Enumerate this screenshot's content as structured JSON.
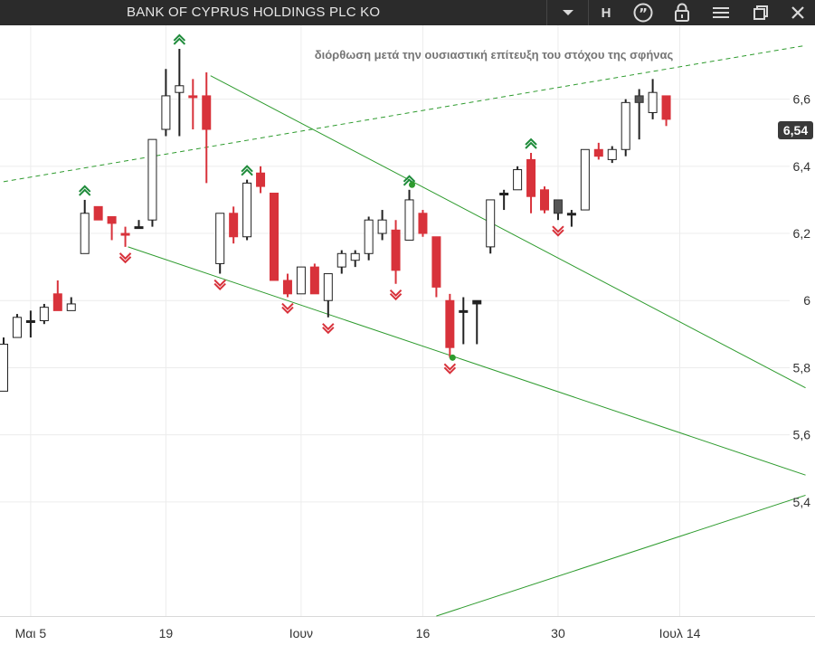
{
  "window": {
    "title": "BANK OF CYPRUS HOLDINGS PLC KO",
    "h_label": "H"
  },
  "icons": [
    "chevron-down-icon",
    "quote-icon",
    "lock-icon",
    "menu-icon",
    "restore-icon",
    "close-icon"
  ],
  "colors": {
    "bull": "#ffffff",
    "bear": "#d8323b",
    "neutral": "#222222",
    "trendline": "#2e9b2e",
    "buy_signal": "#1e8b3a",
    "sell_signal": "#d8323b",
    "titlebar": "#2b2b2b"
  },
  "chart_data": {
    "type": "candlestick",
    "title": "BANK OF CYPRUS HOLDINGS PLC KO",
    "annotation": "διόρθωση μετά την ουσιαστική επίτευξη του στόχου της σφήνας",
    "last_price_label": "6,54",
    "last_price": 6.54,
    "ylim": [
      5.06,
      6.82
    ],
    "yticks": [
      {
        "value": 6.6,
        "label": "6,6"
      },
      {
        "value": 6.4,
        "label": "6,4"
      },
      {
        "value": 6.2,
        "label": "6,2"
      },
      {
        "value": 6.0,
        "label": "6"
      },
      {
        "value": 5.8,
        "label": "5,8"
      },
      {
        "value": 5.6,
        "label": "5,6"
      },
      {
        "value": 5.4,
        "label": "5,4"
      }
    ],
    "xticks": [
      {
        "index": 2,
        "label": "Μαι 5"
      },
      {
        "index": 12,
        "label": "19"
      },
      {
        "index": 22,
        "label": "Ιουν"
      },
      {
        "index": 31,
        "label": "16"
      },
      {
        "index": 41,
        "label": "30"
      },
      {
        "index": 50,
        "label": "Ιουλ 14"
      }
    ],
    "candles": [
      {
        "o": 5.73,
        "h": 5.89,
        "l": 5.73,
        "c": 5.87,
        "dir": "up"
      },
      {
        "o": 5.89,
        "h": 5.96,
        "l": 5.89,
        "c": 5.95,
        "dir": "up"
      },
      {
        "o": 5.94,
        "h": 5.97,
        "l": 5.89,
        "c": 5.94,
        "dir": "neutral"
      },
      {
        "o": 5.94,
        "h": 5.99,
        "l": 5.93,
        "c": 5.98,
        "dir": "up"
      },
      {
        "o": 6.02,
        "h": 6.06,
        "l": 5.97,
        "c": 5.97,
        "dir": "down"
      },
      {
        "o": 5.97,
        "h": 6.01,
        "l": 5.97,
        "c": 5.99,
        "dir": "up"
      },
      {
        "o": 6.14,
        "h": 6.3,
        "l": 6.14,
        "c": 6.26,
        "dir": "up"
      },
      {
        "o": 6.28,
        "h": 6.28,
        "l": 6.24,
        "c": 6.24,
        "dir": "down"
      },
      {
        "o": 6.25,
        "h": 6.25,
        "l": 6.18,
        "c": 6.23,
        "dir": "down"
      },
      {
        "o": 6.2,
        "h": 6.22,
        "l": 6.16,
        "c": 6.2,
        "dir": "down"
      },
      {
        "o": 6.22,
        "h": 6.24,
        "l": 6.22,
        "c": 6.22,
        "dir": "neutral"
      },
      {
        "o": 6.24,
        "h": 6.48,
        "l": 6.22,
        "c": 6.48,
        "dir": "up"
      },
      {
        "o": 6.51,
        "h": 6.69,
        "l": 6.49,
        "c": 6.61,
        "dir": "up"
      },
      {
        "o": 6.62,
        "h": 6.75,
        "l": 6.49,
        "c": 6.64,
        "dir": "up"
      },
      {
        "o": 6.61,
        "h": 6.66,
        "l": 6.51,
        "c": 6.61,
        "dir": "down"
      },
      {
        "o": 6.61,
        "h": 6.68,
        "l": 6.35,
        "c": 6.51,
        "dir": "down"
      },
      {
        "o": 6.11,
        "h": 6.26,
        "l": 6.08,
        "c": 6.26,
        "dir": "up"
      },
      {
        "o": 6.26,
        "h": 6.28,
        "l": 6.17,
        "c": 6.19,
        "dir": "down"
      },
      {
        "o": 6.19,
        "h": 6.36,
        "l": 6.18,
        "c": 6.35,
        "dir": "up"
      },
      {
        "o": 6.38,
        "h": 6.4,
        "l": 6.32,
        "c": 6.34,
        "dir": "down"
      },
      {
        "o": 6.32,
        "h": 6.32,
        "l": 6.06,
        "c": 6.06,
        "dir": "down"
      },
      {
        "o": 6.06,
        "h": 6.08,
        "l": 6.01,
        "c": 6.02,
        "dir": "down"
      },
      {
        "o": 6.02,
        "h": 6.1,
        "l": 6.02,
        "c": 6.1,
        "dir": "up"
      },
      {
        "o": 6.1,
        "h": 6.11,
        "l": 6.02,
        "c": 6.02,
        "dir": "down"
      },
      {
        "o": 6.0,
        "h": 6.08,
        "l": 5.95,
        "c": 6.08,
        "dir": "up"
      },
      {
        "o": 6.1,
        "h": 6.15,
        "l": 6.08,
        "c": 6.14,
        "dir": "up"
      },
      {
        "o": 6.12,
        "h": 6.15,
        "l": 6.1,
        "c": 6.14,
        "dir": "up"
      },
      {
        "o": 6.14,
        "h": 6.25,
        "l": 6.12,
        "c": 6.24,
        "dir": "up"
      },
      {
        "o": 6.2,
        "h": 6.27,
        "l": 6.18,
        "c": 6.24,
        "dir": "up"
      },
      {
        "o": 6.21,
        "h": 6.24,
        "l": 6.05,
        "c": 6.09,
        "dir": "down"
      },
      {
        "o": 6.18,
        "h": 6.33,
        "l": 6.18,
        "c": 6.3,
        "dir": "up"
      },
      {
        "o": 6.26,
        "h": 6.27,
        "l": 6.19,
        "c": 6.2,
        "dir": "down"
      },
      {
        "o": 6.19,
        "h": 6.19,
        "l": 6.01,
        "c": 6.04,
        "dir": "down"
      },
      {
        "o": 6.0,
        "h": 6.02,
        "l": 5.83,
        "c": 5.86,
        "dir": "down"
      },
      {
        "o": 5.97,
        "h": 6.01,
        "l": 5.87,
        "c": 5.97,
        "dir": "neutral"
      },
      {
        "o": 6.0,
        "h": 6.0,
        "l": 5.87,
        "c": 5.99,
        "dir": "neutral"
      },
      {
        "o": 6.16,
        "h": 6.3,
        "l": 6.14,
        "c": 6.3,
        "dir": "up"
      },
      {
        "o": 6.32,
        "h": 6.33,
        "l": 6.27,
        "c": 6.32,
        "dir": "neutral"
      },
      {
        "o": 6.33,
        "h": 6.4,
        "l": 6.33,
        "c": 6.39,
        "dir": "up"
      },
      {
        "o": 6.42,
        "h": 6.44,
        "l": 6.26,
        "c": 6.31,
        "dir": "down"
      },
      {
        "o": 6.33,
        "h": 6.34,
        "l": 6.26,
        "c": 6.27,
        "dir": "down"
      },
      {
        "o": 6.3,
        "h": 6.3,
        "l": 6.24,
        "c": 6.26,
        "dir": "dark"
      },
      {
        "o": 6.26,
        "h": 6.27,
        "l": 6.22,
        "c": 6.26,
        "dir": "neutral"
      },
      {
        "o": 6.27,
        "h": 6.45,
        "l": 6.27,
        "c": 6.45,
        "dir": "up"
      },
      {
        "o": 6.45,
        "h": 6.47,
        "l": 6.42,
        "c": 6.43,
        "dir": "down"
      },
      {
        "o": 6.42,
        "h": 6.46,
        "l": 6.41,
        "c": 6.45,
        "dir": "up"
      },
      {
        "o": 6.45,
        "h": 6.6,
        "l": 6.43,
        "c": 6.59,
        "dir": "up"
      },
      {
        "o": 6.59,
        "h": 6.63,
        "l": 6.48,
        "c": 6.61,
        "dir": "dark"
      },
      {
        "o": 6.56,
        "h": 6.66,
        "l": 6.54,
        "c": 6.62,
        "dir": "up"
      },
      {
        "o": 6.61,
        "h": 6.61,
        "l": 6.52,
        "c": 6.54,
        "dir": "down"
      }
    ],
    "signals": [
      {
        "index": 6,
        "type": "buy"
      },
      {
        "index": 9,
        "type": "sell"
      },
      {
        "index": 13,
        "type": "buy"
      },
      {
        "index": 16,
        "type": "sell"
      },
      {
        "index": 18,
        "type": "buy"
      },
      {
        "index": 21,
        "type": "sell"
      },
      {
        "index": 24,
        "type": "sell"
      },
      {
        "index": 29,
        "type": "sell"
      },
      {
        "index": 30,
        "type": "buy"
      },
      {
        "index": 33,
        "type": "sell"
      },
      {
        "index": 39,
        "type": "buy"
      },
      {
        "index": 41,
        "type": "sell"
      }
    ],
    "trendlines": [
      {
        "style": "dashed",
        "from": {
          "index": -0.6,
          "value": 6.35
        },
        "to": {
          "index": 59.3,
          "value": 6.76
        }
      },
      {
        "style": "solid",
        "from": {
          "index": 15.3,
          "value": 6.67
        },
        "to": {
          "index": 59.3,
          "value": 5.74
        }
      },
      {
        "style": "solid",
        "from": {
          "index": 9.2,
          "value": 6.16
        },
        "to": {
          "index": 59.3,
          "value": 5.48
        }
      },
      {
        "style": "solid",
        "from": {
          "index": 32.0,
          "value": 5.06
        },
        "to": {
          "index": 59.3,
          "value": 5.42
        }
      }
    ],
    "pivots": [
      {
        "index": 30.2,
        "value": 6.345
      },
      {
        "index": 33.2,
        "value": 5.83
      }
    ]
  }
}
